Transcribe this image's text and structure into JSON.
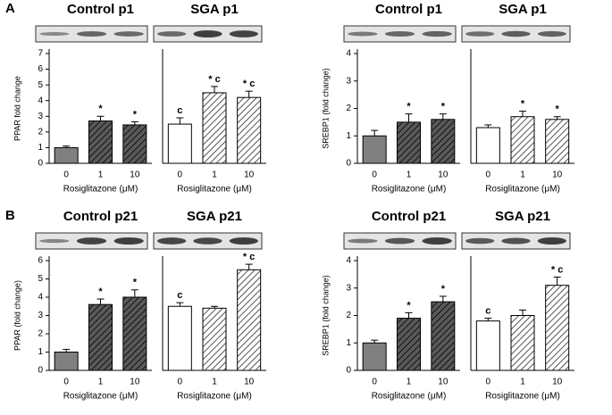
{
  "chart_data": [
    {
      "type": "bar",
      "label": "A",
      "ylabel": "PPAR   fold change",
      "ylim": [
        0,
        7
      ],
      "yticks": [
        0,
        1,
        2,
        3,
        4,
        5,
        6,
        7
      ],
      "panels": [
        {
          "title": "Control p1",
          "xlabel": "Rosiglitazone (μM)",
          "categories": [
            "0",
            "1",
            "10"
          ],
          "values": [
            1.0,
            2.7,
            2.45
          ],
          "errors": [
            0.1,
            0.3,
            0.2
          ],
          "annotations": [
            null,
            "*",
            "*"
          ],
          "colors": [
            "#808080",
            "#5a5a5a",
            "#5a5a5a"
          ],
          "hatch": [
            false,
            true,
            true
          ]
        },
        {
          "title": "SGA p1",
          "xlabel": "Rosiglitazone (μM)",
          "categories": [
            "0",
            "1",
            "10"
          ],
          "values": [
            2.5,
            4.5,
            4.2
          ],
          "errors": [
            0.4,
            0.4,
            0.4
          ],
          "annotations": [
            "c",
            "* c",
            "* c"
          ],
          "colors": [
            "#ffffff",
            "#ffffff",
            "#ffffff"
          ],
          "hatch": [
            false,
            true,
            true
          ]
        }
      ]
    },
    {
      "type": "bar",
      "ylabel": "SREBP1 (fold change)",
      "ylim": [
        0,
        4
      ],
      "yticks": [
        0,
        1,
        2,
        3,
        4
      ],
      "panels": [
        {
          "title": "Control p1",
          "xlabel": "Rosiglitazone (μM)",
          "categories": [
            "0",
            "1",
            "10"
          ],
          "values": [
            1.0,
            1.5,
            1.6
          ],
          "errors": [
            0.2,
            0.3,
            0.2
          ],
          "annotations": [
            null,
            "*",
            "*"
          ],
          "colors": [
            "#808080",
            "#5a5a5a",
            "#5a5a5a"
          ],
          "hatch": [
            false,
            true,
            true
          ]
        },
        {
          "title": "SGA p1",
          "xlabel": "Rosiglitazone (μM)",
          "categories": [
            "0",
            "1",
            "10"
          ],
          "values": [
            1.3,
            1.7,
            1.6
          ],
          "errors": [
            0.1,
            0.2,
            0.1
          ],
          "annotations": [
            null,
            "*",
            "*"
          ],
          "colors": [
            "#ffffff",
            "#ffffff",
            "#ffffff"
          ],
          "hatch": [
            false,
            true,
            true
          ]
        }
      ]
    },
    {
      "type": "bar",
      "label": "B",
      "ylabel": "PPAR   (fold change)",
      "ylim": [
        0,
        6
      ],
      "yticks": [
        0,
        1,
        2,
        3,
        4,
        5,
        6
      ],
      "panels": [
        {
          "title": "Control p21",
          "xlabel": "Rosiglitazone (μM)",
          "categories": [
            "0",
            "1",
            "10"
          ],
          "values": [
            1.0,
            3.6,
            4.0
          ],
          "errors": [
            0.15,
            0.3,
            0.4
          ],
          "annotations": [
            null,
            "*",
            "*"
          ],
          "colors": [
            "#808080",
            "#5a5a5a",
            "#5a5a5a"
          ],
          "hatch": [
            false,
            true,
            true
          ]
        },
        {
          "title": "SGA p21",
          "xlabel": "Rosiglitazone (μM)",
          "categories": [
            "0",
            "1",
            "10"
          ],
          "values": [
            3.5,
            3.4,
            5.5
          ],
          "errors": [
            0.2,
            0.1,
            0.3
          ],
          "annotations": [
            "c",
            null,
            "* c"
          ],
          "colors": [
            "#ffffff",
            "#ffffff",
            "#ffffff"
          ],
          "hatch": [
            false,
            true,
            true
          ]
        }
      ]
    },
    {
      "type": "bar",
      "ylabel": "SREBP1 (fold change)",
      "ylim": [
        0,
        4
      ],
      "yticks": [
        0,
        1,
        2,
        3,
        4
      ],
      "panels": [
        {
          "title": "Control p21",
          "xlabel": "Rosiglitazone (μM)",
          "categories": [
            "0",
            "1",
            "10"
          ],
          "values": [
            1.0,
            1.9,
            2.5
          ],
          "errors": [
            0.1,
            0.2,
            0.2
          ],
          "annotations": [
            null,
            "*",
            "*"
          ],
          "colors": [
            "#808080",
            "#5a5a5a",
            "#5a5a5a"
          ],
          "hatch": [
            false,
            true,
            true
          ]
        },
        {
          "title": "SGA p21",
          "xlabel": "Rosiglitazone (μM)",
          "categories": [
            "0",
            "1",
            "10"
          ],
          "values": [
            1.8,
            2.0,
            3.1
          ],
          "errors": [
            0.1,
            0.2,
            0.3
          ],
          "annotations": [
            "c",
            null,
            "* c"
          ],
          "colors": [
            "#ffffff",
            "#ffffff",
            "#ffffff"
          ],
          "hatch": [
            false,
            true,
            true
          ]
        }
      ]
    }
  ]
}
